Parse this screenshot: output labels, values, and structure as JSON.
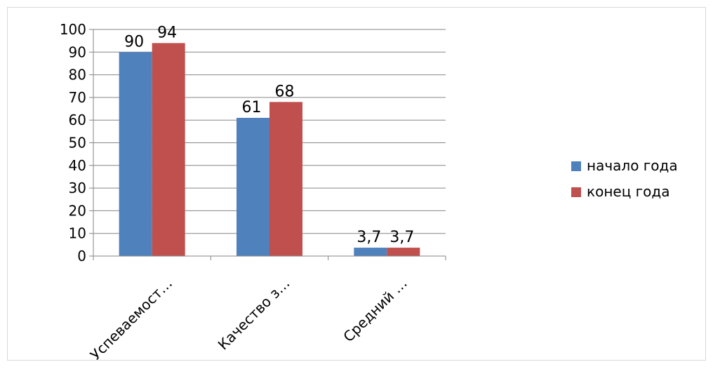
{
  "chart_data": {
    "type": "bar",
    "categories": [
      "Успеваемост…",
      "Качество з…",
      "Средний …"
    ],
    "series": [
      {
        "name": "начало года",
        "values": [
          90,
          61,
          3.7
        ],
        "labels": [
          "90",
          "61",
          "3,7"
        ],
        "color": "#4f81bd"
      },
      {
        "name": "конец года",
        "values": [
          94,
          68,
          3.7
        ],
        "labels": [
          "94",
          "68",
          "3,7"
        ],
        "color": "#c0504d"
      }
    ],
    "title": "",
    "xlabel": "",
    "ylabel": "",
    "ylim": [
      0,
      100
    ],
    "yticks": [
      0,
      10,
      20,
      30,
      40,
      50,
      60,
      70,
      80,
      90,
      100
    ],
    "grid": true,
    "legend": "right"
  }
}
